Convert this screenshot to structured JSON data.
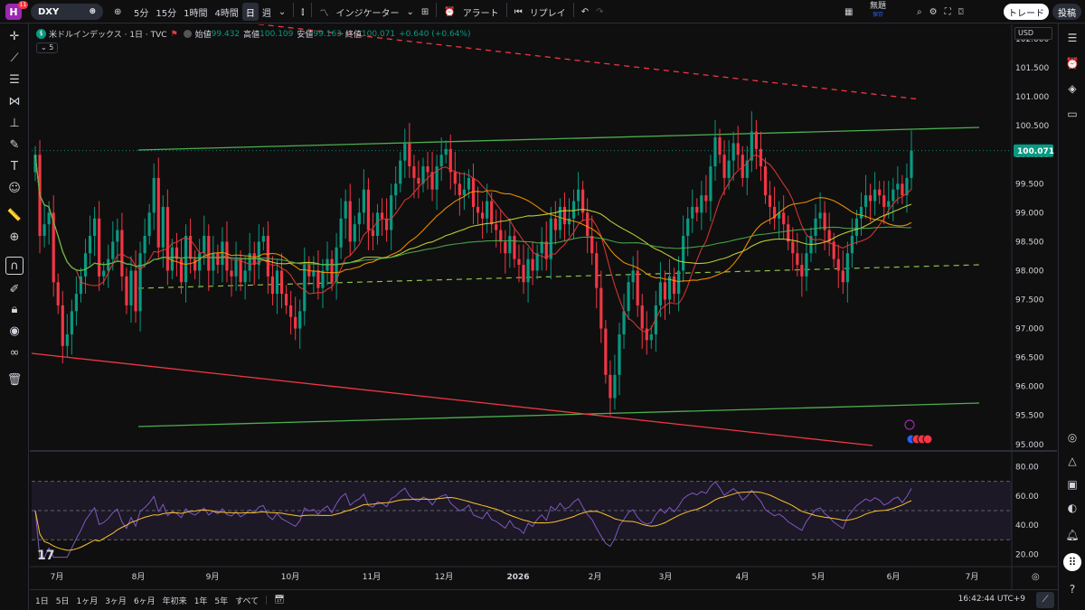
{
  "topbar": {
    "avatar_letter": "H",
    "notifications": "11",
    "symbol": "DXY",
    "timeframes": [
      "5分",
      "15分",
      "1時間",
      "4時間",
      "日",
      "週"
    ],
    "active_timeframe": "日",
    "indicators_label": "インジケーター",
    "alert_label": "アラート",
    "replay_label": "リプレイ",
    "layout_name": "無題",
    "layout_status": "保存",
    "trade_label": "トレード",
    "post_label": "投稿"
  },
  "legend": {
    "title": "米ドルインデックス · 1日 · TVC",
    "open_label": "始値",
    "open": "99.432",
    "high_label": "高値",
    "high": "100.109",
    "low_label": "安値",
    "low": "99.163",
    "close_label": "終値",
    "close": "100.071",
    "change": "+0.640 (+0.64%)",
    "collapsed_count": "5"
  },
  "currency": "USD",
  "chart_data": {
    "type": "candlestick",
    "price_axis": [
      "102.000",
      "101.500",
      "101.000",
      "100.500",
      "100.000",
      "99.500",
      "99.000",
      "98.500",
      "98.000",
      "97.500",
      "97.000",
      "96.500",
      "96.000",
      "95.500",
      "95.000"
    ],
    "price_range": [
      94.95,
      102.25
    ],
    "last_price": "100.071",
    "rsi_axis": [
      "80.00",
      "60.00",
      "40.00",
      "20.00"
    ],
    "rsi_range": [
      14,
      86
    ],
    "time_axis": [
      "7月",
      "8月",
      "9月",
      "10月",
      "11月",
      "12月",
      "2026",
      "2月",
      "3月",
      "4月",
      "5月",
      "6月",
      "7月"
    ],
    "closes": [
      100.0,
      98.6,
      98.8,
      99.0,
      97.8,
      97.4,
      96.7,
      96.9,
      97.3,
      97.6,
      97.9,
      98.3,
      98.6,
      98.9,
      97.9,
      98.0,
      98.2,
      98.5,
      98.7,
      97.9,
      97.4,
      98.0,
      97.3,
      98.3,
      98.6,
      99.0,
      99.6,
      98.4,
      99.1,
      98.0,
      98.4,
      98.2,
      97.8,
      98.6,
      98.2,
      98.0,
      98.3,
      98.6,
      98.0,
      98.3,
      98.1,
      98.5,
      98.0,
      97.9,
      98.2,
      97.8,
      98.0,
      98.3,
      98.1,
      98.5,
      98.6,
      97.9,
      97.6,
      98.0,
      97.6,
      97.4,
      97.2,
      97.0,
      97.3,
      98.1,
      97.9,
      98.0,
      97.7,
      98.0,
      98.2,
      97.8,
      98.4,
      98.9,
      99.2,
      98.5,
      98.8,
      99.0,
      99.4,
      98.7,
      98.6,
      99.0,
      98.9,
      98.7,
      99.3,
      99.5,
      99.9,
      100.2,
      99.8,
      99.6,
      99.5,
      99.8,
      99.7,
      99.4,
      99.8,
      100.0,
      100.1,
      99.7,
      99.5,
      99.3,
      99.4,
      99.6,
      99.1,
      99.0,
      98.9,
      99.2,
      98.8,
      98.7,
      98.5,
      98.3,
      98.6,
      98.2,
      98.1,
      97.8,
      98.2,
      98.0,
      98.3,
      98.5,
      98.2,
      98.9,
      98.7,
      99.1,
      98.8,
      98.9,
      99.2,
      99.4,
      99.0,
      98.6,
      98.3,
      97.7,
      97.0,
      96.2,
      95.8,
      96.2,
      96.9,
      97.3,
      97.8,
      98.0,
      97.4,
      97.0,
      96.8,
      96.9,
      97.4,
      97.8,
      97.5,
      97.9,
      97.6,
      98.0,
      98.6,
      98.9,
      99.1,
      99.0,
      99.3,
      99.2,
      99.8,
      100.3,
      100.0,
      99.6,
      99.9,
      100.2,
      100.0,
      99.6,
      99.9,
      100.4,
      100.1,
      99.8,
      99.3,
      99.1,
      98.9,
      99.0,
      98.8,
      98.5,
      98.3,
      98.1,
      97.9,
      98.3,
      98.6,
      98.9,
      99.0,
      98.7,
      98.5,
      98.2,
      98.0,
      97.8,
      98.3,
      98.6,
      98.9,
      99.1,
      99.3,
      99.2,
      99.4,
      99.3,
      99.1,
      99.2,
      99.4,
      99.5,
      99.3,
      99.6,
      100.071
    ],
    "overlays": [
      "20-day MA (red)",
      "50-day MA (orange)",
      "100-day MA (yellow)",
      "200-day MA (green)"
    ],
    "trendlines": [
      "upper channel (green)",
      "lower channel (green)",
      "mid channel (green dashed)",
      "descending support (red)",
      "descending resistance (red dashed)"
    ]
  },
  "bottombar": {
    "ranges": [
      "1日",
      "5日",
      "1ヶ月",
      "3ヶ月",
      "6ヶ月",
      "年初来",
      "1年",
      "5年",
      "すべて"
    ],
    "clock": "16:42:44 UTC+9"
  },
  "colors": {
    "up": "#089981",
    "down": "#f23645",
    "background": "#0f0f0f"
  }
}
